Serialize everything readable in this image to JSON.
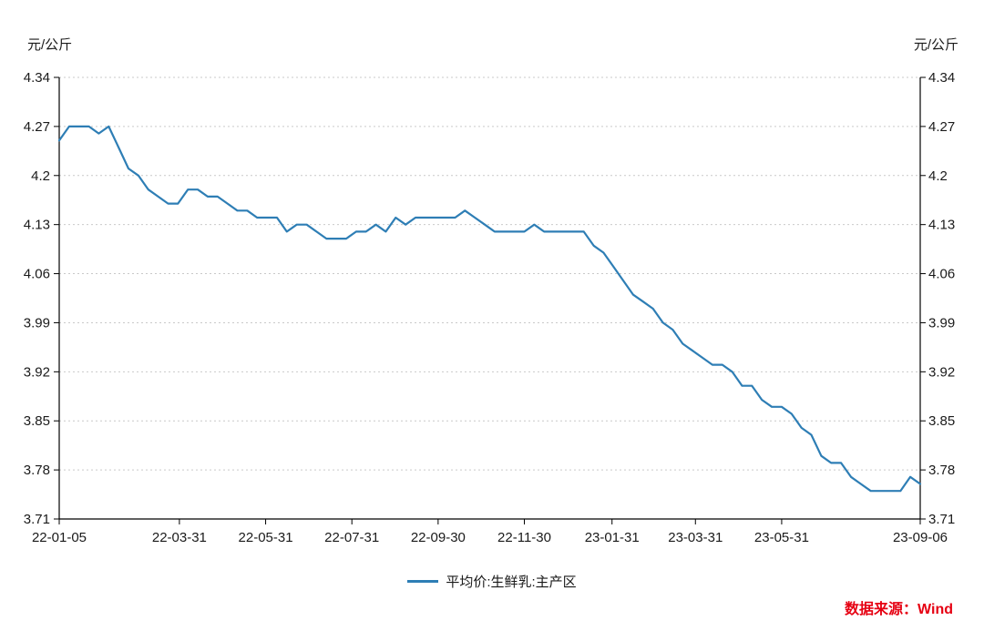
{
  "chart_data": {
    "type": "line",
    "title": "",
    "left_unit": "元/公斤",
    "right_unit": "元/公斤",
    "ylim": [
      3.71,
      4.34
    ],
    "y_ticks": [
      "4.34",
      "4.27",
      "4.2",
      "4.13",
      "4.06",
      "3.99",
      "3.92",
      "3.85",
      "3.78",
      "3.71"
    ],
    "x_tick_labels": [
      "22-01-05",
      "22-03-31",
      "22-05-31",
      "22-07-31",
      "22-09-30",
      "22-11-30",
      "23-01-31",
      "23-03-31",
      "23-05-31",
      "23-09-06"
    ],
    "grid": "horizontal-dotted",
    "legend_position": "bottom-center",
    "series": [
      {
        "name": "平均价:生鲜乳:主产区",
        "color": "#2e7eb5",
        "x": [
          "22-01-05",
          "22-01-12",
          "22-01-19",
          "22-01-26",
          "22-02-02",
          "22-02-09",
          "22-02-16",
          "22-02-23",
          "22-03-02",
          "22-03-09",
          "22-03-16",
          "22-03-23",
          "22-03-30",
          "22-04-06",
          "22-04-13",
          "22-04-20",
          "22-04-27",
          "22-05-04",
          "22-05-11",
          "22-05-18",
          "22-05-25",
          "22-06-01",
          "22-06-08",
          "22-06-15",
          "22-06-22",
          "22-06-29",
          "22-07-06",
          "22-07-13",
          "22-07-20",
          "22-07-27",
          "22-08-03",
          "22-08-10",
          "22-08-17",
          "22-08-24",
          "22-08-31",
          "22-09-07",
          "22-09-14",
          "22-09-21",
          "22-09-28",
          "22-10-12",
          "22-10-19",
          "22-10-26",
          "22-11-02",
          "22-11-09",
          "22-11-16",
          "22-11-23",
          "22-11-30",
          "22-12-07",
          "22-12-14",
          "22-12-21",
          "22-12-28",
          "23-01-04",
          "23-01-11",
          "23-01-18",
          "23-01-25",
          "23-02-01",
          "23-02-08",
          "23-02-15",
          "23-02-22",
          "23-03-01",
          "23-03-08",
          "23-03-15",
          "23-03-22",
          "23-03-29",
          "23-04-05",
          "23-04-12",
          "23-04-19",
          "23-04-26",
          "23-05-03",
          "23-05-10",
          "23-05-17",
          "23-05-24",
          "23-05-31",
          "23-06-07",
          "23-06-14",
          "23-06-21",
          "23-06-28",
          "23-07-05",
          "23-07-12",
          "23-07-19",
          "23-07-26",
          "23-08-02",
          "23-08-09",
          "23-08-16",
          "23-08-23",
          "23-08-30",
          "23-09-06"
        ],
        "values": [
          4.25,
          4.27,
          4.27,
          4.27,
          4.26,
          4.27,
          4.24,
          4.21,
          4.2,
          4.18,
          4.17,
          4.16,
          4.16,
          4.18,
          4.18,
          4.17,
          4.17,
          4.16,
          4.15,
          4.15,
          4.14,
          4.14,
          4.14,
          4.12,
          4.13,
          4.13,
          4.12,
          4.11,
          4.11,
          4.11,
          4.12,
          4.12,
          4.13,
          4.12,
          4.14,
          4.13,
          4.14,
          4.14,
          4.14,
          4.14,
          4.15,
          4.14,
          4.13,
          4.12,
          4.12,
          4.12,
          4.12,
          4.13,
          4.12,
          4.12,
          4.12,
          4.12,
          4.12,
          4.1,
          4.09,
          4.07,
          4.05,
          4.03,
          4.02,
          4.01,
          3.99,
          3.98,
          3.96,
          3.95,
          3.94,
          3.93,
          3.93,
          3.92,
          3.9,
          3.9,
          3.88,
          3.87,
          3.87,
          3.86,
          3.84,
          3.83,
          3.8,
          3.79,
          3.79,
          3.77,
          3.76,
          3.75,
          3.75,
          3.75,
          3.75,
          3.77,
          3.76
        ]
      }
    ]
  },
  "source": {
    "label": "数据来源：Wind",
    "color": "#e60012"
  },
  "colors": {
    "axis": "#000000",
    "grid": "#c9c9c9",
    "text": "#1a1a1a"
  }
}
